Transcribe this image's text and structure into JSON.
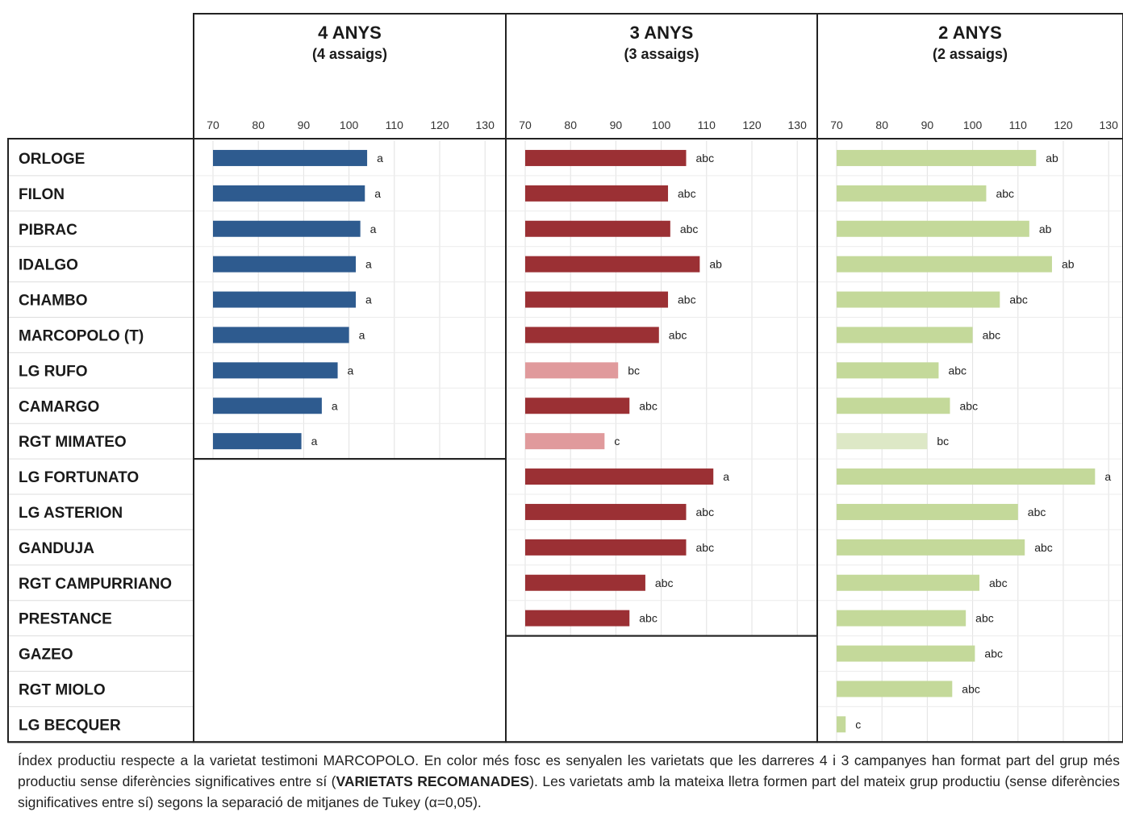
{
  "chart_data": {
    "type": "bar",
    "orientation": "horizontal",
    "varieties": [
      "ORLOGE",
      "FILON",
      "PIBRAC",
      "IDALGO",
      "CHAMBO",
      "MARCOPOLO (T)",
      "LG RUFO",
      "CAMARGO",
      "RGT MIMATEO",
      "LG FORTUNATO",
      "LG ASTERION",
      "GANDUJA",
      "RGT CAMPURRIANO",
      "PRESTANCE",
      "GAZEO",
      "RGT MIOLO",
      "LG BECQUER"
    ],
    "xlim": [
      70,
      130
    ],
    "ticks": [
      "70",
      "80",
      "90",
      "100",
      "110",
      "120",
      "130"
    ],
    "grid": true,
    "panels": [
      {
        "title": "4 ANYS",
        "subtitle": "(4 assaigs)",
        "color_recommended": "#2e5b8f",
        "color_other": "#8fa9c9",
        "values": [
          104,
          103.5,
          102.5,
          101.5,
          101.5,
          100,
          97.5,
          94,
          89.5
        ],
        "labels": [
          "a",
          "a",
          "a",
          "a",
          "a",
          "a",
          "a",
          "a",
          "a"
        ],
        "recommended": [
          true,
          true,
          true,
          true,
          true,
          true,
          true,
          true,
          true
        ]
      },
      {
        "title": "3 ANYS",
        "subtitle": "(3 assaigs)",
        "color_recommended": "#9b3034",
        "color_other": "#e09a9c",
        "values": [
          105.5,
          101.5,
          102,
          108.5,
          101.5,
          99.5,
          90.5,
          93,
          87.5,
          111.5,
          105.5,
          105.5,
          96.5,
          93
        ],
        "labels": [
          "abc",
          "abc",
          "abc",
          "ab",
          "abc",
          "abc",
          "bc",
          "abc",
          "c",
          "a",
          "abc",
          "abc",
          "abc",
          "abc"
        ],
        "recommended": [
          true,
          true,
          true,
          true,
          true,
          true,
          false,
          true,
          false,
          true,
          true,
          true,
          true,
          true
        ]
      },
      {
        "title": "2 ANYS",
        "subtitle": "(2 assaigs)",
        "color_recommended": "#c4d99a",
        "color_other": "#dde8c6",
        "values": [
          114,
          103,
          112.5,
          117.5,
          106,
          100,
          92.5,
          95,
          90,
          127,
          110,
          111.5,
          101.5,
          98.5,
          100.5,
          95.5,
          72
        ],
        "labels": [
          "ab",
          "abc",
          "ab",
          "ab",
          "abc",
          "abc",
          "abc",
          "abc",
          "bc",
          "a",
          "abc",
          "abc",
          "abc",
          "abc",
          "abc",
          "abc",
          "c"
        ],
        "recommended": [
          true,
          true,
          true,
          true,
          true,
          true,
          true,
          true,
          false,
          true,
          true,
          true,
          true,
          true,
          true,
          true,
          true
        ]
      }
    ]
  },
  "caption": {
    "part1": "Índex productiu respecte a la varietat testimoni MARCOPOLO. En color més fosc es senyalen les varietats que les darreres 4 i 3 campanyes han format part del grup més productiu sense diferències significatives entre sí (",
    "bold": "VARIETATS RECOMANADES",
    "part2": "). Les varietats amb la mateixa lletra formen part del mateix grup productiu (sense diferències significatives entre sí) segons la separació de mitjanes de Tukey (α=0,05)."
  }
}
